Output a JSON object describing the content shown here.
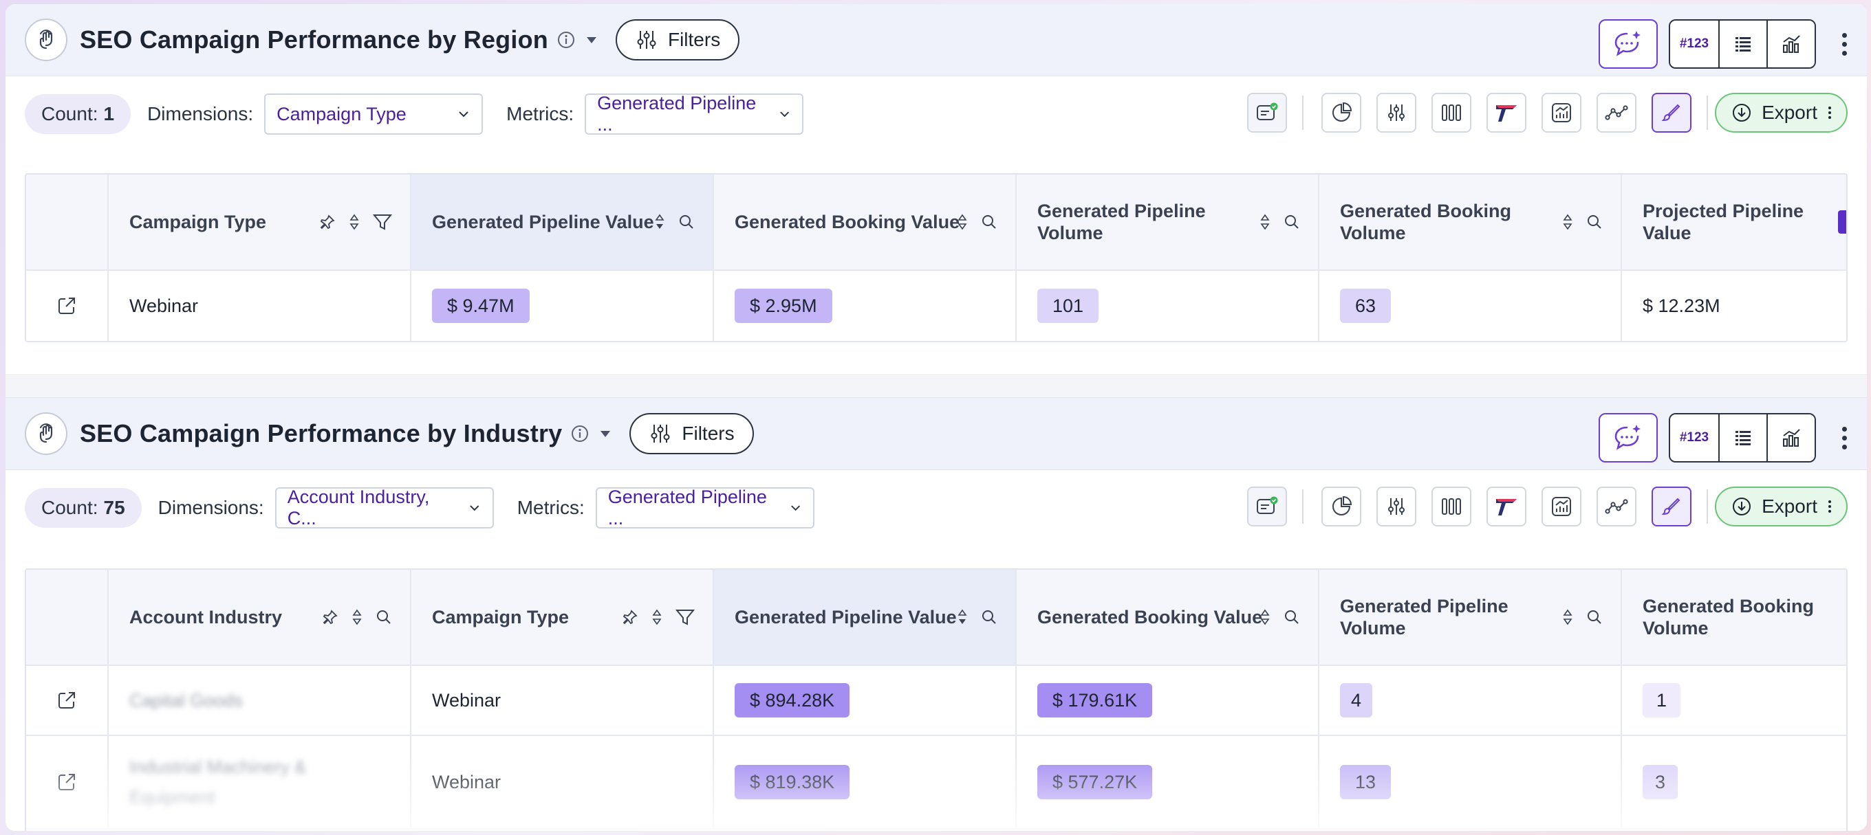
{
  "panels": [
    {
      "title": "SEO Campaign Performance by Region",
      "filters_label": "Filters",
      "seg_num_label": "#123",
      "count_label": "Count:",
      "count_value": "1",
      "dimensions_label": "Dimensions:",
      "dimensions_value": "Campaign Type",
      "metrics_label": "Metrics:",
      "metrics_value": "Generated Pipeline ...",
      "export_label": "Export",
      "columns": [
        "Campaign Type",
        "Generated Pipeline Value",
        "Generated Booking Value",
        "Generated Pipeline Volume",
        "Generated Booking Volume",
        "Projected Pipeline Value"
      ],
      "rows": [
        [
          "Webinar",
          "$ 9.47M",
          "$ 2.95M",
          "101",
          "63",
          "$ 12.23M"
        ]
      ]
    },
    {
      "title": "SEO Campaign Performance by Industry",
      "filters_label": "Filters",
      "seg_num_label": "#123",
      "count_label": "Count:",
      "count_value": "75",
      "dimensions_label": "Dimensions:",
      "dimensions_value": "Account Industry, C...",
      "metrics_label": "Metrics:",
      "metrics_value": "Generated Pipeline ...",
      "export_label": "Export",
      "columns": [
        "Account Industry",
        "Campaign Type",
        "Generated Pipeline Value",
        "Generated Booking Value",
        "Generated Pipeline Volume",
        "Generated Booking Volume"
      ],
      "rows": [
        [
          "Capital Goods",
          "Webinar",
          "$ 894.28K",
          "$ 179.61K",
          "4",
          "1"
        ],
        [
          "Industrial Machinery & Equipment",
          "Webinar",
          "$ 819.38K",
          "$ 577.27K",
          "13",
          "3"
        ]
      ]
    }
  ],
  "colors": {
    "accent": "#6b3fd3",
    "badge_dark": "#a48ef2",
    "badge_mid": "#c4b6f6",
    "badge_light": "#ddd4fa",
    "export_green": "#6cc47b"
  }
}
